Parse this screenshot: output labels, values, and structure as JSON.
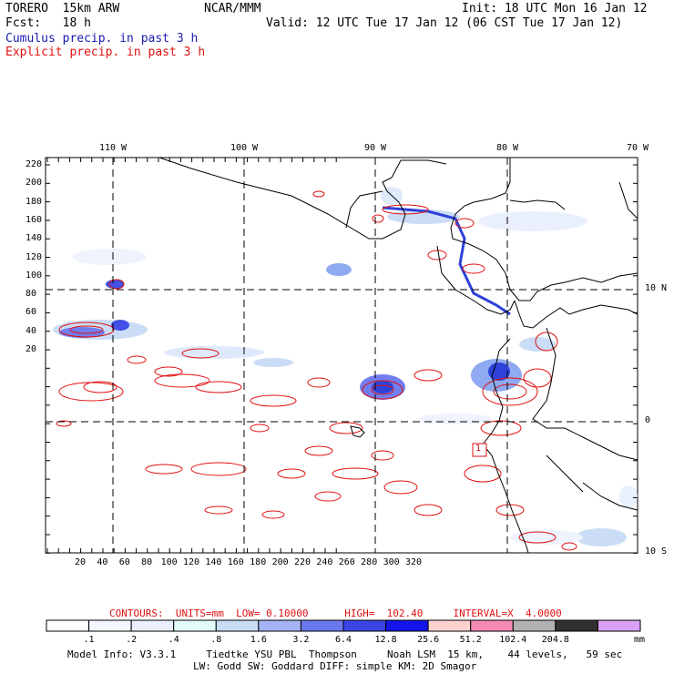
{
  "header": {
    "model": "TORERO  15km ARW",
    "org": "NCAR/MMM",
    "init": "Init: 18 UTC Mon 16 Jan 12",
    "fcst": "Fcst:   18 h",
    "valid": "Valid: 12 UTC Tue 17 Jan 12 (06 CST Tue 17 Jan 12)",
    "field1": "Cumulus precip. in past 3 h",
    "field2": "Explicit precip. in past 3 h"
  },
  "map": {
    "top_lon_labels": [
      "110 W",
      "100 W",
      "90 W",
      "80 W",
      "70 W"
    ],
    "right_lat_labels": [
      "10 N",
      "0",
      "10 S"
    ],
    "left_y_ticks": [
      "220",
      "200",
      "180",
      "160",
      "140",
      "120",
      "100",
      "80",
      "60",
      "40",
      "20"
    ],
    "bottom_x_ticks": [
      "20",
      "40",
      "60",
      "80",
      "100",
      "120",
      "140",
      "160",
      "180",
      "200",
      "220",
      "240",
      "260",
      "280",
      "300",
      "320"
    ],
    "box_label": "1",
    "colors": {
      "coast": "#000000",
      "contour": "#e01010",
      "cumulus_light": "#dde8fb",
      "cumulus_mid": "#8aa6f0",
      "cumulus_dark": "#2438d8",
      "grid": "#000000"
    }
  },
  "footer": {
    "contours_line": "CONTOURS:  UNITS=mm  LOW= 0.10000      HIGH=  102.40     INTERVAL=X  4.0000",
    "colorbar_labels": [
      ".1",
      ".2",
      ".4",
      ".8",
      "1.6",
      "3.2",
      "6.4",
      "12.8",
      "25.6",
      "51.2",
      "102.4",
      "204.8"
    ],
    "colorbar_unit": "mm",
    "colorbar_colors": [
      "#ffffff",
      "#f4f7fe",
      "#eaf0fd",
      "#e2fbfb",
      "#c9dcf6",
      "#a4b3f5",
      "#6a78ee",
      "#3946e4",
      "#1414e8",
      "#ffd2d2",
      "#f58ab4",
      "#b2b2b2",
      "#303030",
      "#d9a0f5"
    ],
    "model_info_1": "Model Info: V3.3.1     Tiedtke YSU PBL  Thompson     Noah LSM  15 km,    44 levels,   59 sec",
    "model_info_2": "LW: Godd SW: Goddard DIFF: simple KM: 2D Smagor"
  }
}
